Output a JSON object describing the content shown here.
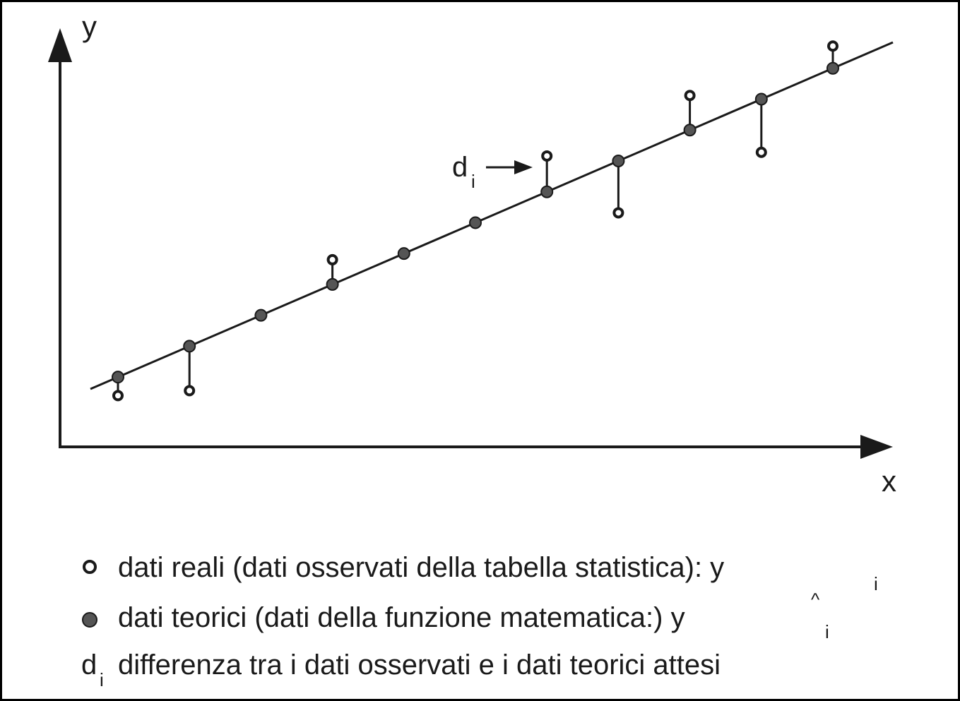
{
  "chart_data": {
    "type": "scatter",
    "xlabel": "x",
    "ylabel": "y",
    "observed_y": [
      -1.5,
      -3.6,
      null,
      2.0,
      null,
      null,
      2.9,
      -4.2,
      2.8,
      -4.3,
      1.8
    ],
    "annotation": {
      "symbol": "d",
      "subscript": "i"
    }
  },
  "legend": [
    {
      "marker": "open-circle",
      "text": "dati reali (dati osservati della tabella statistica): y",
      "subscript": "i"
    },
    {
      "marker": "filled-circle",
      "text": "dati teorici (dati della funzione matematica:) y",
      "subscript": "i",
      "hat": "^"
    },
    {
      "marker": "d-symbol",
      "symbol": "d",
      "symbol_subscript": "i",
      "text": "differenza tra i dati osservati e i dati teorici attesi"
    }
  ],
  "colors": {
    "stroke": "#1a1a1a",
    "point_fill": "#555555"
  }
}
